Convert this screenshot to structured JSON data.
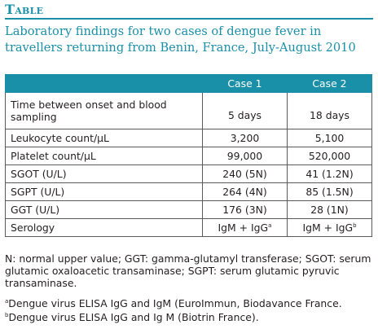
{
  "heading": "Table",
  "caption": "Laboratory findings for two cases of dengue fever in travellers returning from Benin, France, July-August 2010",
  "columns": [
    "Case 1",
    "Case 2"
  ],
  "rows": [
    {
      "label": "Time between onset and blood sampling",
      "case1": "5 days",
      "case2": "18 days"
    },
    {
      "label": "Leukocyte count/µL",
      "case1": "3,200",
      "case2": "5,100"
    },
    {
      "label": "Platelet count/µL",
      "case1": "99,000",
      "case2": "520,000"
    },
    {
      "label": "SGOT (U/L)",
      "case1": "240 (5N)",
      "case2": "41 (1.2N)"
    },
    {
      "label": "SGPT (U/L)",
      "case1": "264 (4N)",
      "case2": "85 (1.5N)"
    },
    {
      "label": "GGT (U/L)",
      "case1": "176 (3N)",
      "case2": "28 (1N)"
    },
    {
      "label": "Serology",
      "case1": "IgM + IgG",
      "case1_sup": "a",
      "case2": "IgM + IgG",
      "case2_sup": "b"
    }
  ],
  "abbreviations": "N: normal upper value; GGT: gamma-glutamyl transferase; SGOT: serum glutamic oxaloacetic transaminase; SGPT: serum glutamic pyruvic transaminase.",
  "footnotes": [
    {
      "mark": "a",
      "text": "Dengue virus ELISA IgG and IgM (EuroImmun, Biodavance France."
    },
    {
      "mark": "b",
      "text": "Dengue virus ELISA IgG and Ig M (Biotrin France)."
    }
  ],
  "colors": {
    "accent": "#1a8fa8"
  }
}
